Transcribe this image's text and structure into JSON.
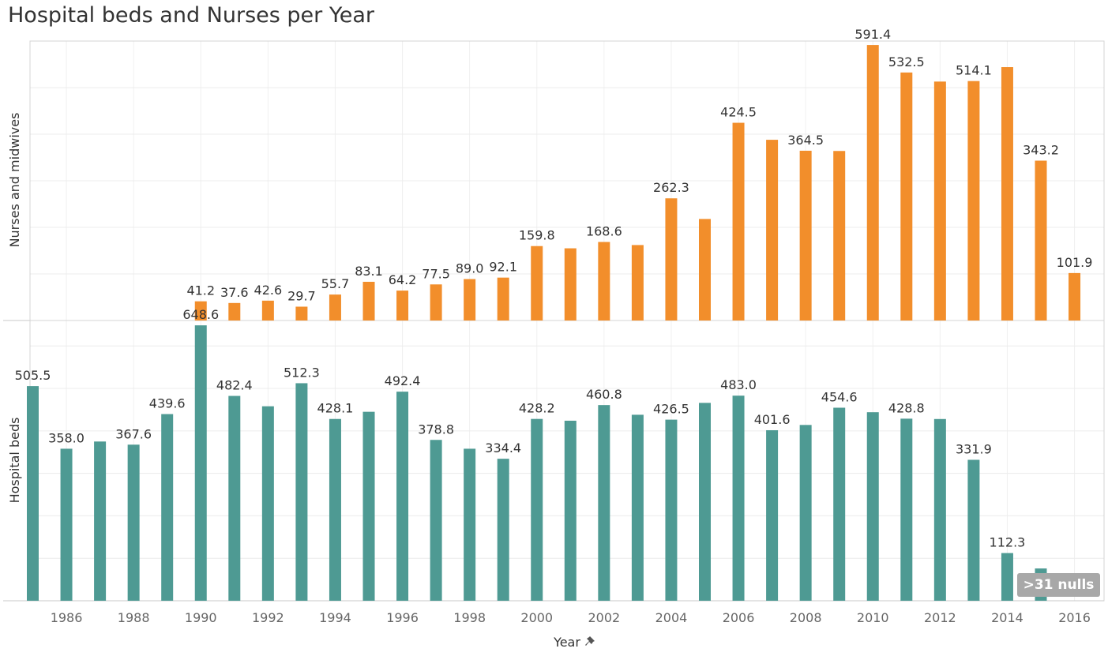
{
  "title": "Hospital beds and Nurses per Year",
  "nulls_badge": ">31 nulls",
  "xaxis_icon": "pin-icon",
  "chart_data": {
    "type": "bar",
    "title": "Hospital beds and Nurses per Year",
    "xlabel": "Year",
    "x": [
      1985,
      1986,
      1987,
      1988,
      1989,
      1990,
      1991,
      1992,
      1993,
      1994,
      1995,
      1996,
      1997,
      1998,
      1999,
      2000,
      2001,
      2002,
      2003,
      2004,
      2005,
      2006,
      2007,
      2008,
      2009,
      2010,
      2011,
      2012,
      2013,
      2014,
      2015,
      2016
    ],
    "x_ticks": [
      1986,
      1988,
      1990,
      1992,
      1994,
      1996,
      1998,
      2000,
      2002,
      2004,
      2006,
      2008,
      2010,
      2012,
      2014,
      2016
    ],
    "grid": true,
    "panels": [
      {
        "name": "Nurses and midwives",
        "ylabel": "Nurses and midwives",
        "color": "#f28e2b",
        "ylim": [
          0,
          600
        ],
        "values": [
          null,
          null,
          null,
          null,
          null,
          41.2,
          37.6,
          42.6,
          29.7,
          55.7,
          83.1,
          64.2,
          77.5,
          89.0,
          92.1,
          159.8,
          155.0,
          168.6,
          162.0,
          262.3,
          218.0,
          424.5,
          388.0,
          364.5,
          364.0,
          591.4,
          532.5,
          513.0,
          514.1,
          544.0,
          343.2,
          101.9
        ],
        "labels": [
          null,
          null,
          null,
          null,
          null,
          "41.2",
          "37.6",
          "42.6",
          "29.7",
          "55.7",
          "83.1",
          "64.2",
          "77.5",
          "89.0",
          "92.1",
          "159.8",
          null,
          "168.6",
          null,
          "262.3",
          null,
          "424.5",
          null,
          "364.5",
          null,
          "591.4",
          "532.5",
          null,
          "514.1",
          null,
          "343.2",
          "101.9"
        ]
      },
      {
        "name": "Hospital beds",
        "ylabel": "Hospital beds",
        "color": "#4e9a93",
        "ylim": [
          0,
          660
        ],
        "values": [
          505.5,
          358.0,
          375.0,
          367.6,
          439.6,
          648.6,
          482.4,
          458.0,
          512.3,
          428.1,
          445.0,
          492.4,
          378.8,
          358.0,
          334.4,
          428.2,
          424.0,
          460.8,
          438.0,
          426.5,
          466.0,
          483.0,
          401.6,
          414.0,
          454.6,
          444.0,
          428.8,
          428.0,
          331.9,
          112.3,
          76.0,
          null
        ],
        "labels": [
          "505.5",
          "358.0",
          null,
          "367.6",
          "439.6",
          "648.6",
          "482.4",
          null,
          "512.3",
          "428.1",
          null,
          "492.4",
          "378.8",
          null,
          "334.4",
          "428.2",
          null,
          "460.8",
          null,
          "426.5",
          null,
          "483.0",
          "401.6",
          null,
          "454.6",
          null,
          "428.8",
          null,
          "331.9",
          "112.3",
          null,
          null
        ]
      }
    ]
  }
}
